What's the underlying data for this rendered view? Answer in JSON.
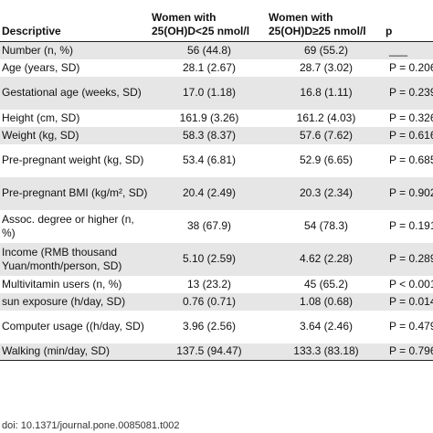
{
  "header": {
    "col1": "Descriptive",
    "col2": "Women with 25(OH)D<25 nmol/l",
    "col3": "Women with 25(OH)D≥25 nmol/l",
    "col4": "p"
  },
  "rows": [
    {
      "label": "Number (n, %)",
      "low": "56 (44.8)",
      "high": "69 (55.2)",
      "p": "___"
    },
    {
      "label": "Age (years, SD)",
      "low": "28.1 (2.67)",
      "high": "28.7 (3.02)",
      "p": "P = 0.206"
    },
    {
      "label": "Gestational age (weeks, SD)",
      "low": "17.0 (1.18)",
      "high": "16.8 (1.11)",
      "p": "P = 0.239"
    },
    {
      "label": "Height (cm, SD)",
      "low": "161.9 (3.26)",
      "high": "161.2 (4.03)",
      "p": "P = 0.326"
    },
    {
      "label": "Weight (kg, SD)",
      "low": "58.3 (8.37)",
      "high": "57.6 (7.62)",
      "p": "P = 0.616"
    },
    {
      "label": "Pre-pregnant weight (kg, SD)",
      "low": "53.4 (6.81)",
      "high": "52.9 (6.65)",
      "p": "P = 0.685"
    },
    {
      "label": "Pre-pregnant BMI (kg/m², SD)",
      "low": "20.4 (2.49)",
      "high": "20.3 (2.34)",
      "p": "P = 0.902"
    },
    {
      "label": "Assoc. degree or higher (n, %)",
      "low": "38 (67.9)",
      "high": "54 (78.3)",
      "p": "P = 0.191"
    },
    {
      "label": "Income (RMB thousand Yuan/month/person, SD)",
      "low": "5.10 (2.59)",
      "high": "4.62 (2.28)",
      "p": "P = 0.289"
    },
    {
      "label": "Multivitamin users (n, %)",
      "low": "13 (23.2)",
      "high": "45 (65.2)",
      "p": "P < 0.001"
    },
    {
      "label": "sun exposure (h/day, SD)",
      "low": "0.76 (0.71)",
      "high": "1.08 (0.68)",
      "p": "P = 0.014"
    },
    {
      "label": "Computer usage ((h/day, SD)",
      "low": "3.96 (2.56)",
      "high": "3.64 (2.46)",
      "p": "P = 0.479"
    },
    {
      "label": "Walking (min/day, SD)",
      "low": "137.5 (94.47)",
      "high": "133.3 (83.18)",
      "p": "P = 0.796"
    }
  ],
  "footer": {
    "doi": "doi: 10.1371/journal.pone.0085081.t002"
  },
  "colors": {
    "shade": "#e6e6e6",
    "rule": "#222222"
  }
}
